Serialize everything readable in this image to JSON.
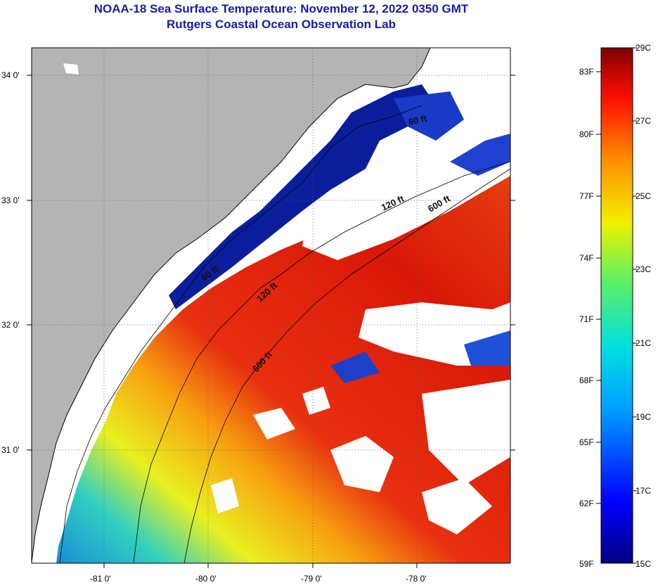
{
  "title": "NOAA-18 Sea Surface Temperature:  November 12, 2022 0350 GMT",
  "subtitle": "Rutgers Coastal Ocean Observation Lab",
  "lat_labels": [
    "34 0'",
    "33 0'",
    "32 0'",
    "31 0'"
  ],
  "lon_labels": [
    "-81 0'",
    "-80 0'",
    "-79 0'",
    "-78 0'"
  ],
  "contour_labels": [
    "60 ft",
    "120 ft",
    "600 ft",
    "60 ft",
    "120 ft",
    "600 ft"
  ],
  "colorbar": {
    "fahrenheit": [
      "83F",
      "80F",
      "77F",
      "74F",
      "71F",
      "68F",
      "65F",
      "62F",
      "59F"
    ],
    "celsius": [
      "29C",
      "27C",
      "25C",
      "23C",
      "21C",
      "19C",
      "17C",
      "15C"
    ]
  },
  "colors": {
    "land": "#b4b4b4",
    "ocean_cold": "#0a1e9c",
    "ocean_warm": "#e8220a",
    "title": "#1a1aa8"
  }
}
